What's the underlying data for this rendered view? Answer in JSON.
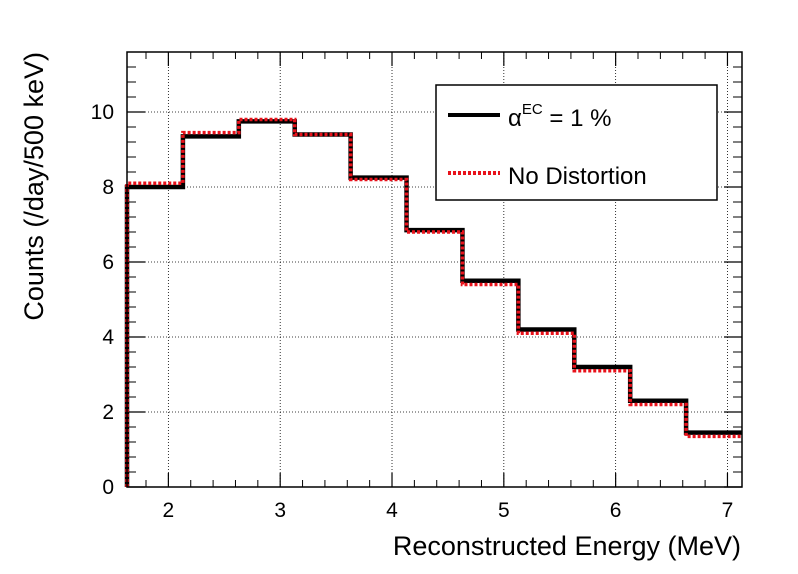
{
  "chart_data": {
    "type": "line",
    "xlabel": "Reconstructed Energy (MeV)",
    "ylabel": "Counts (/day/500 keV)",
    "xlim": [
      1.63,
      7.13
    ],
    "ylim": [
      0,
      11.6
    ],
    "x_ticks": [
      "2",
      "3",
      "4",
      "5",
      "6",
      "7"
    ],
    "y_ticks": [
      "0",
      "2",
      "4",
      "6",
      "8",
      "10"
    ],
    "grid": true,
    "legend_position": "top-right",
    "bin_edges": [
      1.63,
      2.13,
      2.63,
      3.13,
      3.63,
      4.13,
      4.63,
      5.13,
      5.63,
      6.13,
      6.63,
      7.13
    ],
    "series": [
      {
        "name_main": "α",
        "name_sup": "EC",
        "name_rest": " = 1 %",
        "style": "solid",
        "color": "#000000",
        "values": [
          8.0,
          9.35,
          9.75,
          9.4,
          8.25,
          6.85,
          5.5,
          4.2,
          3.2,
          2.3,
          1.45
        ]
      },
      {
        "name": "No Distortion",
        "style": "dotted",
        "color": "#e8121b",
        "values": [
          8.1,
          9.45,
          9.8,
          9.4,
          8.2,
          6.8,
          5.4,
          4.1,
          3.1,
          2.2,
          1.35
        ]
      }
    ]
  }
}
